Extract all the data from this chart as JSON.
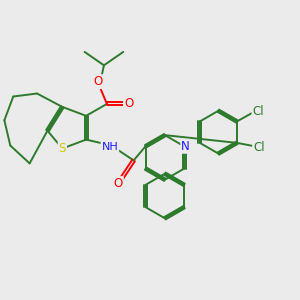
{
  "background_color": "#ebebeb",
  "bond_color": "#2d7a2d",
  "atom_colors": {
    "O": "#ff0000",
    "N": "#1a1aff",
    "S": "#cccc00",
    "Cl": "#2d7a2d",
    "H": "#808080",
    "C": "#2d7a2d"
  },
  "figsize": [
    3.0,
    3.0
  ],
  "dpi": 100
}
